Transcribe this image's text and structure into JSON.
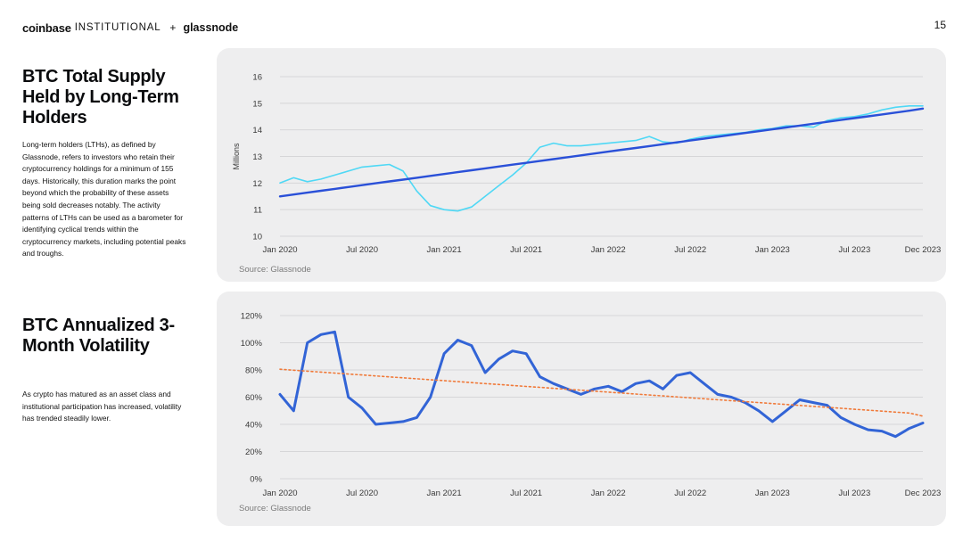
{
  "header": {
    "brand_main": "coinbase",
    "brand_sub": "INSTITUTIONAL",
    "brand_plus": "+",
    "partner": "glassnode",
    "page_number": "15"
  },
  "sections": [
    {
      "title": "BTC Total Supply Held by Long-Term Holders",
      "description": "Long-term holders (LTHs), as defined by Glassnode, refers to investors who retain their cryptocurrency holdings for a minimum of 155 days. Historically, this duration marks the point beyond which the probability of these assets being sold decreases notably. The activity patterns of LTHs can be used as a barometer for identifying cyclical trends within the cryptocurrency markets, including potential peaks and troughs."
    },
    {
      "title": "BTC Annualized 3-Month Volatility",
      "description": "As crypto has matured as an asset class and institutional participation has increased, volatility has trended steadily lower."
    }
  ],
  "chart_data": [
    {
      "type": "line",
      "title": "",
      "xlabel": "",
      "ylabel": "Millions",
      "source": "Source: Glassnode",
      "x_ticks": [
        "Jan 2020",
        "Jul 2020",
        "Jan 2021",
        "Jul 2021",
        "Jan 2022",
        "Jul 2022",
        "Jan 2023",
        "Jul 2023",
        "Dec 2023"
      ],
      "y_ticks": [
        "10",
        "11",
        "12",
        "13",
        "14",
        "15",
        "16"
      ],
      "ylim": [
        10,
        16
      ],
      "grid": true,
      "x": [
        "2020-01",
        "2020-02",
        "2020-03",
        "2020-04",
        "2020-05",
        "2020-06",
        "2020-07",
        "2020-08",
        "2020-09",
        "2020-10",
        "2020-11",
        "2020-12",
        "2021-01",
        "2021-02",
        "2021-03",
        "2021-04",
        "2021-05",
        "2021-06",
        "2021-07",
        "2021-08",
        "2021-09",
        "2021-10",
        "2021-11",
        "2021-12",
        "2022-01",
        "2022-02",
        "2022-03",
        "2022-04",
        "2022-05",
        "2022-06",
        "2022-07",
        "2022-08",
        "2022-09",
        "2022-10",
        "2022-11",
        "2022-12",
        "2023-01",
        "2023-02",
        "2023-03",
        "2023-04",
        "2023-05",
        "2023-06",
        "2023-07",
        "2023-08",
        "2023-09",
        "2023-10",
        "2023-11",
        "2023-12"
      ],
      "series": [
        {
          "color": "#4fd8f5",
          "values": [
            12.0,
            12.2,
            12.05,
            12.15,
            12.3,
            12.45,
            12.6,
            12.65,
            12.7,
            12.45,
            11.7,
            11.15,
            11.0,
            10.95,
            11.1,
            11.5,
            11.9,
            12.3,
            12.75,
            13.35,
            13.5,
            13.4,
            13.4,
            13.45,
            13.5,
            13.55,
            13.6,
            13.75,
            13.55,
            13.5,
            13.65,
            13.75,
            13.8,
            13.85,
            13.9,
            14.0,
            14.05,
            14.15,
            14.15,
            14.1,
            14.35,
            14.45,
            14.5,
            14.6,
            14.75,
            14.85,
            14.9,
            14.9
          ]
        },
        {
          "color": "#2a50d8",
          "values": [
            11.5,
            11.57,
            11.64,
            11.71,
            11.78,
            11.85,
            11.92,
            11.99,
            12.06,
            12.13,
            12.2,
            12.27,
            12.34,
            12.41,
            12.48,
            12.55,
            12.62,
            12.69,
            12.76,
            12.83,
            12.9,
            12.97,
            13.04,
            13.11,
            13.18,
            13.25,
            13.32,
            13.39,
            13.46,
            13.53,
            13.6,
            13.67,
            13.74,
            13.81,
            13.88,
            13.95,
            14.02,
            14.09,
            14.16,
            14.23,
            14.3,
            14.37,
            14.44,
            14.51,
            14.58,
            14.65,
            14.72,
            14.8
          ]
        }
      ]
    },
    {
      "type": "line",
      "title": "",
      "xlabel": "",
      "ylabel": "",
      "source": "Source: Glassnode",
      "x_ticks": [
        "Jan 2020",
        "Jul 2020",
        "Jan 2021",
        "Jul 2021",
        "Jan 2022",
        "Jul 2022",
        "Jan 2023",
        "Jul 2023",
        "Dec 2023"
      ],
      "y_ticks": [
        "0%",
        "20%",
        "40%",
        "60%",
        "80%",
        "100%",
        "120%"
      ],
      "ylim": [
        0,
        120
      ],
      "grid": true,
      "x": [
        "2020-01",
        "2020-02",
        "2020-03",
        "2020-04",
        "2020-05",
        "2020-06",
        "2020-07",
        "2020-08",
        "2020-09",
        "2020-10",
        "2020-11",
        "2020-12",
        "2021-01",
        "2021-02",
        "2021-03",
        "2021-04",
        "2021-05",
        "2021-06",
        "2021-07",
        "2021-08",
        "2021-09",
        "2021-10",
        "2021-11",
        "2021-12",
        "2022-01",
        "2022-02",
        "2022-03",
        "2022-04",
        "2022-05",
        "2022-06",
        "2022-07",
        "2022-08",
        "2022-09",
        "2022-10",
        "2022-11",
        "2022-12",
        "2023-01",
        "2023-02",
        "2023-03",
        "2023-04",
        "2023-05",
        "2023-06",
        "2023-07",
        "2023-08",
        "2023-09",
        "2023-10",
        "2023-11",
        "2023-12"
      ],
      "series": [
        {
          "color": "#3264d6",
          "values": [
            62,
            50,
            100,
            106,
            108,
            60,
            52,
            40,
            41,
            42,
            45,
            60,
            92,
            102,
            98,
            78,
            88,
            94,
            92,
            75,
            70,
            66,
            62,
            66,
            68,
            64,
            70,
            72,
            66,
            76,
            78,
            70,
            62,
            60,
            56,
            50,
            42,
            50,
            58,
            56,
            54,
            45,
            40,
            36,
            35,
            31,
            37,
            41
          ]
        },
        {
          "color": "#f07a3a",
          "values": [
            80.5,
            79.8,
            79.1,
            78.4,
            77.7,
            77.0,
            76.3,
            75.6,
            74.9,
            74.2,
            73.5,
            72.8,
            72.1,
            71.4,
            70.7,
            70.0,
            69.3,
            68.6,
            67.9,
            67.2,
            66.5,
            65.8,
            65.1,
            64.4,
            63.7,
            63.0,
            62.3,
            61.6,
            60.9,
            60.2,
            59.5,
            58.8,
            58.1,
            57.4,
            56.7,
            56.0,
            55.3,
            54.6,
            53.9,
            53.2,
            52.5,
            51.8,
            51.1,
            50.4,
            49.7,
            49.0,
            48.3,
            46.0
          ]
        }
      ]
    }
  ]
}
